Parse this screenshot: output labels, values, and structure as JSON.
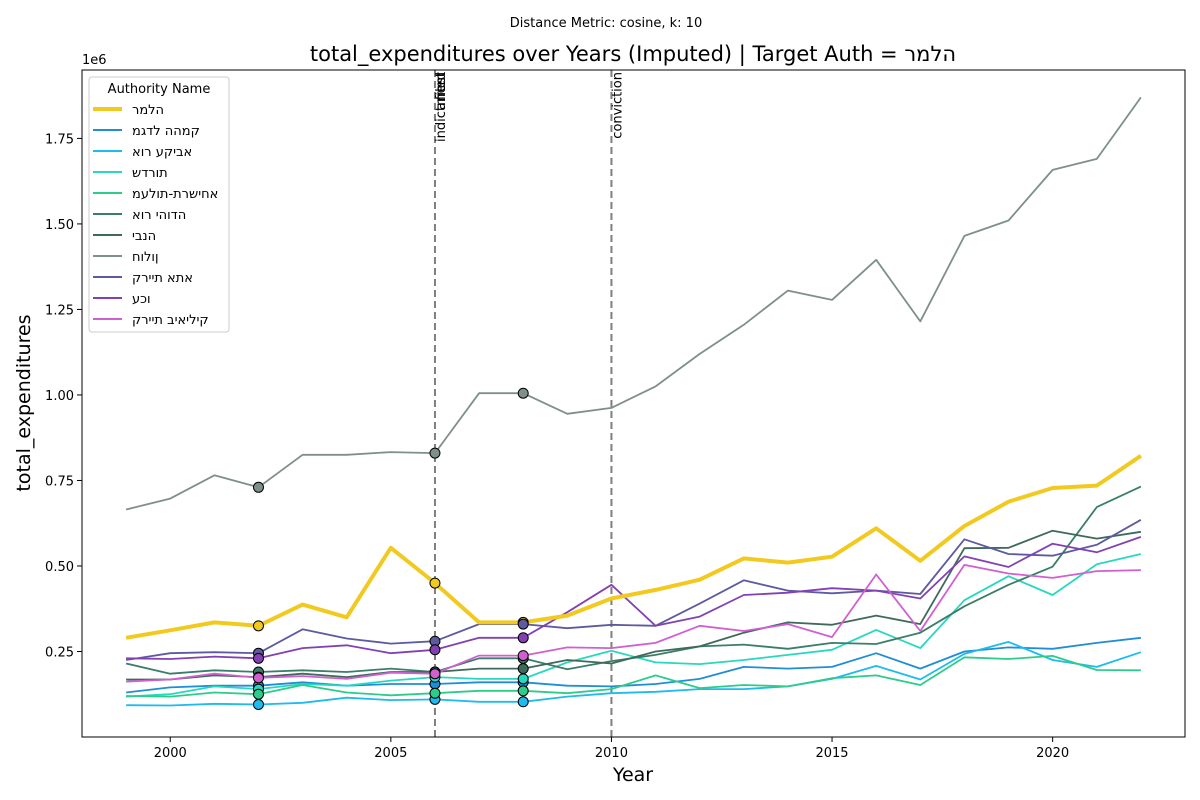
{
  "chart_data": {
    "type": "line",
    "subtitle": "Distance Metric: cosine, k: 10",
    "title": "total_expenditures over Years (Imputed) | Target Auth = הלמר",
    "xlabel": "Year",
    "ylabel": "total_expenditures",
    "y_offset_label": "1e6",
    "xlim": [
      1998,
      2023
    ],
    "ylim": [
      0,
      1950000
    ],
    "x_ticks": [
      2000,
      2005,
      2010,
      2015,
      2020
    ],
    "y_ticks": [
      0.25,
      0.5,
      0.75,
      1.0,
      1.25,
      1.5,
      1.75
    ],
    "y_tick_labels": [
      "0.25",
      "0.50",
      "0.75",
      "1.00",
      "1.25",
      "1.50",
      "1.75"
    ],
    "grid": false,
    "legend": {
      "title": "Authority Name",
      "position": "top-left"
    },
    "vertical_lines": [
      {
        "x": 2006,
        "labels": [
          "indictment",
          "arrest",
          "filed"
        ]
      },
      {
        "x": 2010,
        "labels": [
          "conviction"
        ]
      }
    ],
    "marker_years": [
      2002,
      2006,
      2008
    ],
    "x": [
      1999,
      2000,
      2001,
      2002,
      2003,
      2004,
      2005,
      2006,
      2007,
      2008,
      2009,
      2010,
      2011,
      2012,
      2013,
      2014,
      2015,
      2016,
      2017,
      2018,
      2019,
      2020,
      2021,
      2022
    ],
    "series": [
      {
        "name": "הלמר",
        "color": "#f2ca1f",
        "target": true,
        "values": [
          290000,
          312000,
          335000,
          325000,
          387000,
          350000,
          553000,
          450000,
          335000,
          335000,
          355000,
          405000,
          430000,
          460000,
          522000,
          510000,
          527000,
          610000,
          515000,
          617000,
          688000,
          728000,
          735000,
          822000
        ]
      },
      {
        "name": "קמהה לדגמ",
        "color": "#1f8ed6",
        "values": [
          130000,
          145000,
          150000,
          150000,
          160000,
          150000,
          155000,
          155000,
          160000,
          160000,
          150000,
          148000,
          155000,
          170000,
          205000,
          200000,
          205000,
          245000,
          200000,
          250000,
          262000,
          258000,
          275000,
          290000
        ]
      },
      {
        "name": "אביקע רוא",
        "color": "#1dbbee",
        "values": [
          93000,
          92000,
          97000,
          95000,
          100000,
          115000,
          108000,
          110000,
          103000,
          103000,
          118000,
          128000,
          132000,
          140000,
          140000,
          148000,
          170000,
          208000,
          168000,
          243000,
          278000,
          225000,
          205000,
          248000
        ]
      },
      {
        "name": "תורדש",
        "color": "#27d8c0",
        "values": [
          118000,
          125000,
          148000,
          140000,
          155000,
          150000,
          165000,
          175000,
          170000,
          170000,
          218000,
          252000,
          218000,
          213000,
          225000,
          240000,
          255000,
          313000,
          260000,
          400000,
          470000,
          415000,
          505000,
          535000
        ]
      },
      {
        "name": "אחישרת-תולעמ",
        "color": "#2ecc8a",
        "values": [
          120000,
          118000,
          130000,
          125000,
          152000,
          130000,
          122000,
          128000,
          135000,
          135000,
          128000,
          140000,
          180000,
          143000,
          152000,
          148000,
          172000,
          180000,
          152000,
          233000,
          228000,
          237000,
          196000,
          195000
        ]
      },
      {
        "name": "הדוהי רוא",
        "color": "#3a7e69",
        "values": [
          215000,
          185000,
          195000,
          190000,
          195000,
          190000,
          200000,
          190000,
          230000,
          230000,
          198000,
          222000,
          240000,
          265000,
          270000,
          258000,
          275000,
          272000,
          305000,
          382000,
          445000,
          498000,
          672000,
          732000
        ]
      },
      {
        "name": "הנבי",
        "color": "#3d6a5a",
        "values": [
          168000,
          168000,
          180000,
          175000,
          185000,
          175000,
          190000,
          190000,
          200000,
          200000,
          225000,
          215000,
          250000,
          265000,
          305000,
          335000,
          328000,
          355000,
          330000,
          552000,
          553000,
          603000,
          580000,
          600000
        ]
      },
      {
        "name": "ןולוח",
        "color": "#7f8f8c",
        "values": [
          665000,
          697000,
          765000,
          730000,
          825000,
          825000,
          833000,
          830000,
          1005000,
          1005000,
          945000,
          962000,
          1025000,
          1120000,
          1205000,
          1305000,
          1278000,
          1395000,
          1215000,
          1465000,
          1510000,
          1658000,
          1690000,
          1870000
        ]
      },
      {
        "name": "אתא תיירק",
        "color": "#5e5aa0",
        "values": [
          225000,
          245000,
          248000,
          245000,
          315000,
          288000,
          273000,
          280000,
          330000,
          330000,
          318000,
          328000,
          325000,
          390000,
          458000,
          428000,
          420000,
          428000,
          418000,
          578000,
          535000,
          530000,
          562000,
          635000
        ]
      },
      {
        "name": "וכע",
        "color": "#8241b2",
        "values": [
          230000,
          228000,
          235000,
          230000,
          260000,
          268000,
          245000,
          255000,
          290000,
          290000,
          365000,
          445000,
          325000,
          352000,
          415000,
          422000,
          435000,
          428000,
          405000,
          528000,
          497000,
          565000,
          540000,
          585000
        ]
      },
      {
        "name": "קיליאיב תיירק",
        "color": "#d060d0",
        "values": [
          162000,
          168000,
          185000,
          173000,
          178000,
          170000,
          188000,
          185000,
          238000,
          238000,
          262000,
          260000,
          275000,
          325000,
          310000,
          330000,
          292000,
          475000,
          310000,
          503000,
          478000,
          465000,
          485000,
          488000
        ]
      }
    ]
  }
}
